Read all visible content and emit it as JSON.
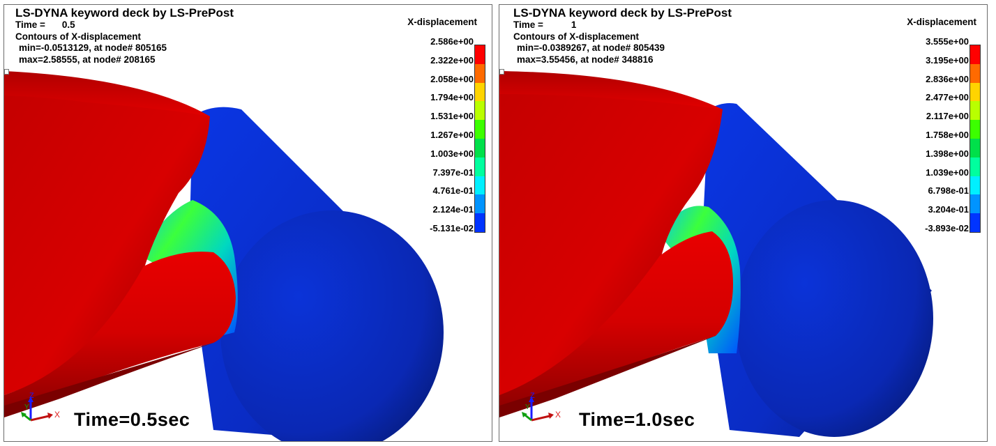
{
  "panels": [
    {
      "title": "LS-DYNA keyword deck by LS-PrePost",
      "time_label": "Time =",
      "time_value": "0.5",
      "contour_label": "Contours of X-displacement",
      "min_text": "min=-0.0513129, at node# 805165",
      "max_text": "max=2.58555, at node# 208165",
      "legend_title": "X-displacement",
      "legend_values": [
        "2.586e+00",
        "2.322e+00",
        "2.058e+00",
        "1.794e+00",
        "1.531e+00",
        "1.267e+00",
        "1.003e+00",
        "7.397e-01",
        "4.761e-01",
        "2.124e-01",
        "-5.131e-02"
      ],
      "caption": "Time=0.5sec",
      "triad": {
        "z": "Z",
        "y": "Y",
        "x": "X"
      }
    },
    {
      "title": "LS-DYNA keyword deck by LS-PrePost",
      "time_label": "Time =",
      "time_value": "1",
      "contour_label": "Contours of X-displacement",
      "min_text": "min=-0.0389267, at node# 805439",
      "max_text": "max=3.55456, at node# 348816",
      "legend_title": "X-displacement",
      "legend_values": [
        "3.555e+00",
        "3.195e+00",
        "2.836e+00",
        "2.477e+00",
        "2.117e+00",
        "1.758e+00",
        "1.398e+00",
        "1.039e+00",
        "6.798e-01",
        "3.204e-01",
        "-3.893e-02"
      ],
      "caption": "Time=1.0sec",
      "triad": {
        "z": "Z",
        "y": "Y",
        "x": "X"
      }
    }
  ],
  "colors": {
    "legend_scale": [
      "#ff0000",
      "#ff6a00",
      "#ffd400",
      "#b9ff00",
      "#3cff00",
      "#00e04a",
      "#00ff9e",
      "#00f0ff",
      "#0094ff",
      "#0034ff"
    ],
    "hull_red": "#d50000",
    "cylinder_blue": "#0a2fd0"
  }
}
